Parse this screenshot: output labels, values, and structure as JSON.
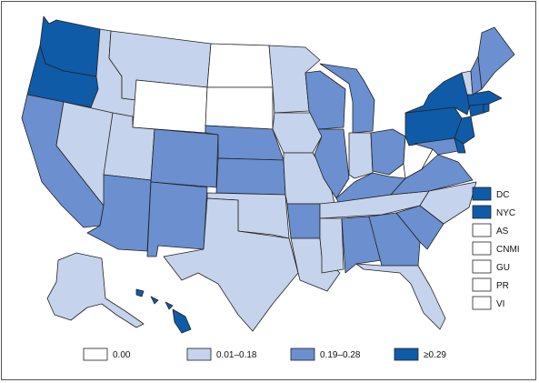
{
  "colors": {
    "c0": "#ffffff",
    "c1": "#c6d3ec",
    "c2": "#6b8fcf",
    "c3": "#0f5ba8"
  },
  "legend": [
    {
      "label": "0.00",
      "class": "c0"
    },
    {
      "label": "0.01–0.18",
      "class": "c1"
    },
    {
      "label": "0.19–0.28",
      "class": "c2"
    },
    {
      "label": "≥0.29",
      "class": "c3"
    }
  ],
  "territories": [
    {
      "label": "DC",
      "class": "c3"
    },
    {
      "label": "NYC",
      "class": "c3"
    },
    {
      "label": "AS",
      "class": "c0"
    },
    {
      "label": "CNMI",
      "class": "c0"
    },
    {
      "label": "GU",
      "class": "c0"
    },
    {
      "label": "PR",
      "class": "c0"
    },
    {
      "label": "VI",
      "class": "c0"
    }
  ],
  "states": {
    "WA": "c3",
    "OR": "c3",
    "CA": "c2",
    "ID": "c1",
    "NV": "c1",
    "MT": "c1",
    "WY": "c0",
    "UT": "c1",
    "AZ": "c2",
    "CO": "c2",
    "NM": "c2",
    "ND": "c0",
    "SD": "c0",
    "NE": "c2",
    "KS": "c2",
    "OK": "c1",
    "TX": "c1",
    "MN": "c1",
    "IA": "c1",
    "MO": "c1",
    "AR": "c2",
    "LA": "c1",
    "WI": "c2",
    "IL": "c2",
    "MI": "c2",
    "IN": "c1",
    "OH": "c2",
    "KY": "c2",
    "TN": "c1",
    "MS": "c1",
    "AL": "c2",
    "GA": "c2",
    "FL": "c1",
    "SC": "c2",
    "NC": "c1",
    "VA": "c2",
    "WV": "c0",
    "PA": "c3",
    "NY": "c3",
    "VT": "c1",
    "NH": "c2",
    "ME": "c2",
    "MA": "c3",
    "CT": "c3",
    "RI": "c3",
    "NJ": "c3",
    "DE": "c3",
    "MD": "c2",
    "AK": "c1",
    "HI": "c3"
  }
}
